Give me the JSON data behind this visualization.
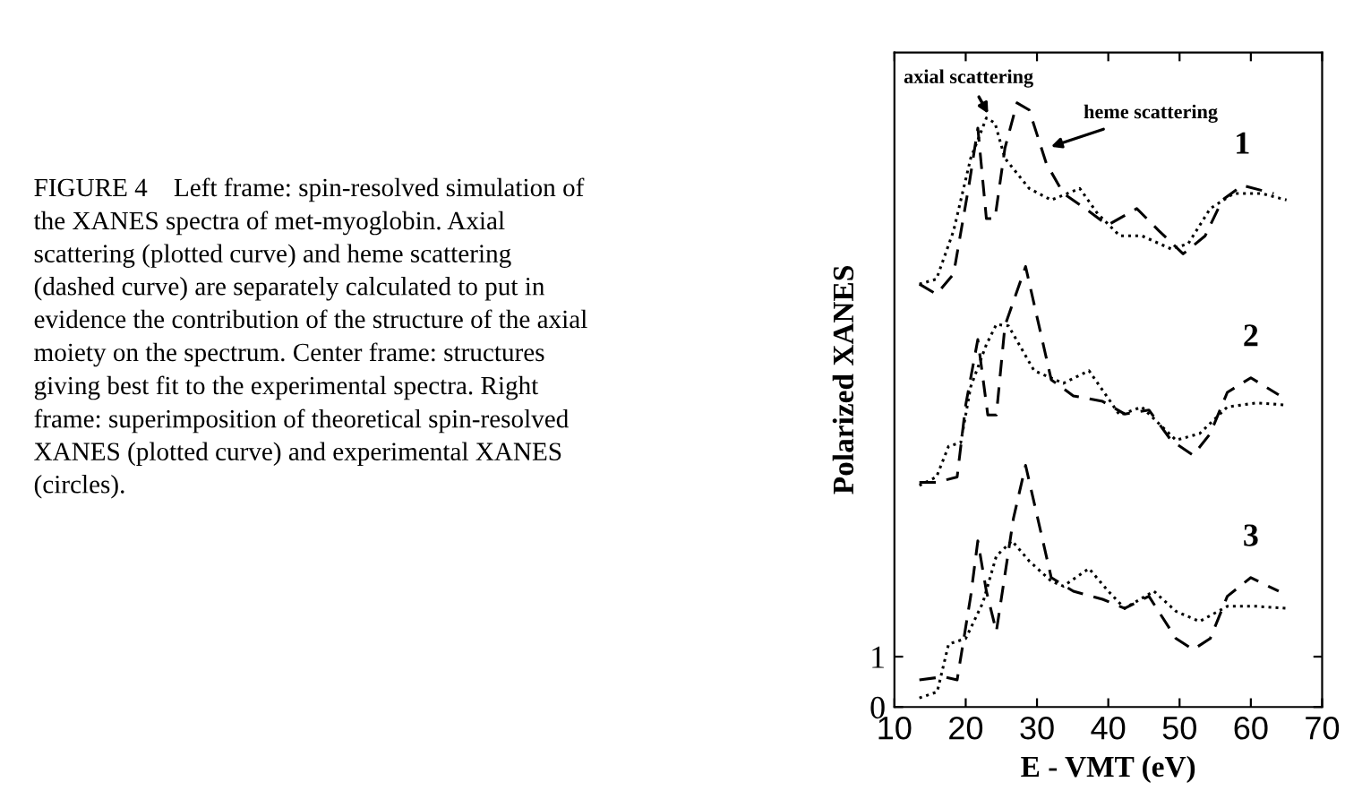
{
  "chart_data": {
    "type": "line",
    "xlabel": "E - VMT (eV)",
    "ylabel": "Polarized XANES",
    "xlim": [
      10,
      70
    ],
    "xticks": [
      10,
      20,
      30,
      40,
      50,
      60,
      70
    ],
    "ylim": [
      0,
      13
    ],
    "yticks": [
      0,
      1
    ],
    "grid": false,
    "marker": "none",
    "series": [
      {
        "color": "#000000",
        "line_style": "dotted",
        "x": [
          13.5,
          15.9,
          18.3,
          20.7,
          22.9,
          24.1,
          25.5,
          28.9,
          32,
          36,
          38.5,
          41.6,
          44.7,
          48.8,
          51.2,
          54.3,
          57.6,
          61.5,
          65
        ],
        "values": [
          8.4,
          8.5,
          9.46,
          10.9,
          11.7,
          11.6,
          10.9,
          10.3,
          10.07,
          10.3,
          9.8,
          9.36,
          9.36,
          9.1,
          9.2,
          9.9,
          10.2,
          10.2,
          10.07
        ]
      },
      {
        "color": "#000000",
        "line_style": "dashed",
        "x": [
          13.5,
          15.9,
          18.3,
          20.5,
          21.7,
          22.9,
          24.1,
          25.5,
          27.2,
          28.9,
          31.3,
          33.7,
          36.8,
          39.9,
          44,
          47.1,
          50.5,
          53.6,
          56,
          58.8,
          63.2
        ],
        "values": [
          8.4,
          8.2,
          8.6,
          10.4,
          11.5,
          9.7,
          9.7,
          11.1,
          12.0,
          11.86,
          10.8,
          10.2,
          9.9,
          9.57,
          9.9,
          9.46,
          9.0,
          9.36,
          10.07,
          10.36,
          10.2
        ]
      },
      {
        "color": "#000000",
        "line_style": "dotted",
        "x": [
          13.5,
          15.9,
          17.6,
          19.3,
          20.7,
          22.9,
          24.3,
          26,
          29.6,
          33.7,
          37.3,
          41.6,
          44.7,
          49.5,
          52.8,
          56.7,
          60.8,
          64.8
        ],
        "values": [
          4.4,
          4.57,
          5.18,
          5.25,
          6.36,
          7.2,
          7.6,
          7.57,
          6.68,
          6.43,
          6.68,
          5.8,
          5.96,
          5.3,
          5.43,
          5.96,
          6.04,
          6.0
        ]
      },
      {
        "color": "#000000",
        "line_style": "dashed",
        "x": [
          13.5,
          15.9,
          18.8,
          20,
          21.7,
          23.1,
          24.3,
          25.5,
          28.4,
          32,
          35.1,
          39.2,
          42.3,
          45.7,
          48.8,
          51.9,
          54.3,
          56.7,
          60,
          63.9
        ],
        "values": [
          4.46,
          4.46,
          4.57,
          6.0,
          7.3,
          5.8,
          5.8,
          7.57,
          8.75,
          6.5,
          6.18,
          6.07,
          5.82,
          5.9,
          5.3,
          5.0,
          5.43,
          6.25,
          6.54,
          6.2
        ]
      },
      {
        "color": "#000000",
        "line_style": "dotted",
        "x": [
          13.5,
          16,
          17.6,
          20,
          22.4,
          24.3,
          26.5,
          28.9,
          32,
          33.7,
          37.3,
          40,
          42.3,
          46.4,
          49.5,
          52.8,
          56.7,
          60.8,
          65.1
        ],
        "values": [
          0.18,
          0.3,
          1.25,
          1.36,
          2.07,
          3.0,
          3.3,
          2.9,
          2.5,
          2.4,
          2.75,
          2.3,
          1.96,
          2.3,
          1.9,
          1.7,
          2.0,
          2.0,
          1.96
        ]
      },
      {
        "color": "#000000",
        "line_style": "dashed",
        "x": [
          13.5,
          16.9,
          18.8,
          20.7,
          21.7,
          22.9,
          24.3,
          26.7,
          28.4,
          32,
          35.1,
          39.2,
          42.3,
          45.7,
          49.5,
          51.9,
          54.3,
          56.7,
          60,
          63.9
        ],
        "values": [
          0.54,
          0.6,
          0.54,
          2.2,
          3.3,
          2.3,
          1.5,
          3.75,
          4.8,
          2.57,
          2.3,
          2.14,
          1.96,
          2.2,
          1.36,
          1.14,
          1.36,
          2.2,
          2.57,
          2.3
        ]
      }
    ],
    "annotations": [
      {
        "text": "axial scattering",
        "x": 23.5,
        "y": 11.7
      },
      {
        "text": "heme scattering",
        "x": 31.3,
        "y": 11.1
      },
      "1",
      "2",
      "3",
      "FIGURE 4    Left frame: spin-resolved simulation of the XANES spectra of met-myoglobin. Axial scattering (plotted curve) and heme scattering (dashed curve) are separately calculated to put in evidence the contribution of the structure of the axial moiety on the spectrum. Center frame: structures giving best fit to the experimental spectra. Right frame: superimposition of theoretical spin-resolved XANES (plotted curve) and experimental XANES (circles)."
    ]
  }
}
